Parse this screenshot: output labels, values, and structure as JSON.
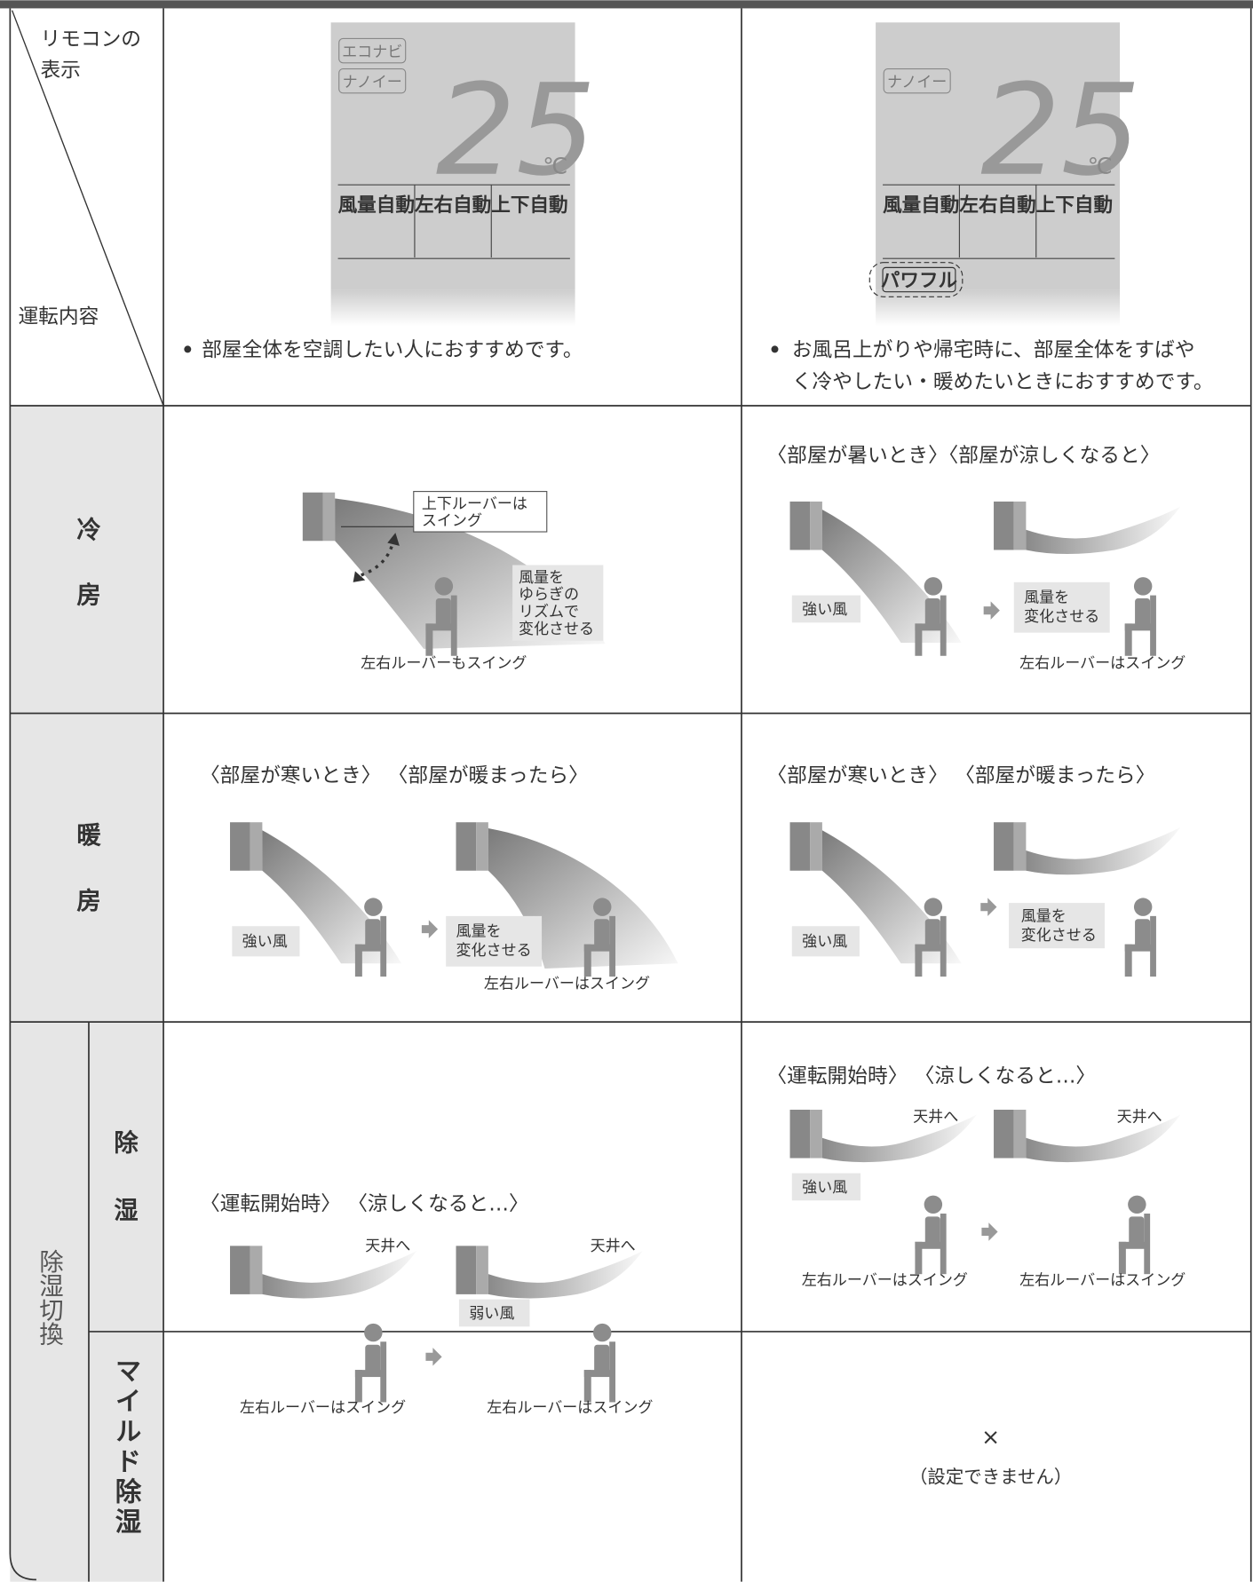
{
  "header": {
    "remote_label": [
      "リモコンの",
      "表示"
    ],
    "operation_label": "運転内容"
  },
  "displays": [
    {
      "badges": [
        "エコナビ",
        "ナノイー"
      ],
      "temperature": "25",
      "unit": "℃",
      "modes": [
        "風量自動",
        "左右自動",
        "上下自動"
      ],
      "description": [
        "部屋全体を空調したい人におすすめです。"
      ]
    },
    {
      "badges": [
        "ナノイー"
      ],
      "temperature": "25",
      "unit": "℃",
      "modes": [
        "風量自動",
        "左右自動",
        "上下自動"
      ],
      "highlight": "パワフル",
      "description": [
        "お風呂上がりや帰宅時に、部屋全体をすばや",
        "く冷やしたい・暖めたいときにおすすめです。"
      ]
    }
  ],
  "cooling": {
    "label": [
      "冷",
      "房"
    ],
    "cell1": {
      "louver_note": [
        "上下ルーバーは",
        "スイング"
      ],
      "wind_note": [
        "風量を",
        "ゆらぎの",
        "リズムで",
        "変化させる"
      ],
      "caption": "左右ルーバーもスイング"
    },
    "cell2": {
      "title": "〈部屋が暑いとき〉〈部屋が涼しくなると〉",
      "strong": "強い風",
      "change": [
        "風量を",
        "変化させる"
      ],
      "caption": "左右ルーバーはスイング"
    }
  },
  "heating": {
    "label": [
      "暖",
      "房"
    ],
    "cell1": {
      "title": "〈部屋が寒いとき〉 〈部屋が暖まったら〉",
      "strong": "強い風",
      "change": [
        "風量を",
        "変化させる"
      ],
      "caption": "左右ルーバーはスイング"
    },
    "cell2": {
      "title": "〈部屋が寒いとき〉 〈部屋が暖まったら〉",
      "strong": "強い風",
      "change": [
        "風量を",
        "変化させる"
      ]
    }
  },
  "dehumidify": {
    "group_label": "除湿切換",
    "label": [
      "除",
      "湿"
    ],
    "cell1": {
      "title": "〈運転開始時〉 〈涼しくなると…〉",
      "ceiling": [
        "天井へ",
        "天井へ"
      ],
      "weak": "弱い風",
      "captions": [
        "左右ルーバーはスイング",
        "左右ルーバーはスイング"
      ]
    },
    "cell2": {
      "title": "〈運転開始時〉 〈涼しくなると…〉",
      "ceiling": [
        "天井へ",
        "天井へ"
      ],
      "strong": "強い風",
      "captions": [
        "左右ルーバーはスイング",
        "左右ルーバーはスイング"
      ]
    }
  },
  "mild": {
    "label": "マイルド除湿",
    "cell2": {
      "mark": "×",
      "note": "（設定できません）"
    }
  }
}
